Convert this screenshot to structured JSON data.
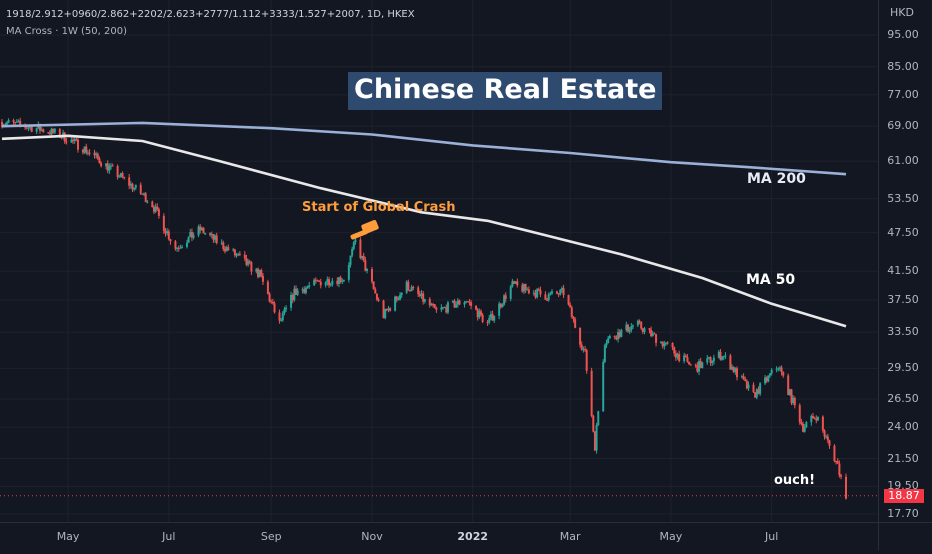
{
  "legend": {
    "symbol_line": "1918/2.912+0960/2.862+2202/2.623+2777/1.112+3333/1.527+2007, 1D, HKEX",
    "indicator_line": "MA Cross · 1W (50, 200)"
  },
  "title": "Chinese Real Estate",
  "annotations": {
    "crash": "Start of Global Crash",
    "ma200": "MA 200",
    "ma50": "MA 50",
    "ouch": "ouch!"
  },
  "currency": "HKD",
  "last_price_label": "18.87",
  "colors": {
    "background": "#131722",
    "up": "#26a69a",
    "down": "#ef5350",
    "ma200": "#9bb0d6",
    "ma50": "#e8e8e8",
    "title_bg": "#2f4a6f",
    "annotation": "#ff9d3b",
    "last_price": "#f23645"
  },
  "icons": [
    "gavel-icon"
  ],
  "chart_data": {
    "type": "candlestick",
    "scale": "log",
    "ylim": [
      17.0,
      100.0
    ],
    "y_ticks": [
      "95.00",
      "85.00",
      "77.00",
      "69.00",
      "61.00",
      "53.50",
      "47.50",
      "41.50",
      "37.50",
      "33.50",
      "29.50",
      "26.50",
      "24.00",
      "21.50",
      "19.50",
      "17.70"
    ],
    "x_ticks": [
      {
        "label": "May",
        "bold": false
      },
      {
        "label": "Jul",
        "bold": false
      },
      {
        "label": "Sep",
        "bold": false
      },
      {
        "label": "Nov",
        "bold": false
      },
      {
        "label": "2022",
        "bold": true
      },
      {
        "label": "Mar",
        "bold": false
      },
      {
        "label": "May",
        "bold": false
      },
      {
        "label": "Jul",
        "bold": false
      }
    ],
    "price_path": [
      [
        "2021-03-22",
        70.0
      ],
      [
        "2021-04-12",
        68.5
      ],
      [
        "2021-04-26",
        67.0
      ],
      [
        "2021-05-10",
        64.0
      ],
      [
        "2021-06-01",
        58.0
      ],
      [
        "2021-06-20",
        53.0
      ],
      [
        "2021-07-05",
        45.0
      ],
      [
        "2021-07-20",
        48.0
      ],
      [
        "2021-08-10",
        44.0
      ],
      [
        "2021-08-25",
        41.0
      ],
      [
        "2021-09-06",
        34.5
      ],
      [
        "2021-09-15",
        38.5
      ],
      [
        "2021-10-01",
        40.0
      ],
      [
        "2021-10-15",
        40.5
      ],
      [
        "2021-10-22",
        46.0
      ],
      [
        "2021-11-08",
        35.5
      ],
      [
        "2021-11-22",
        39.5
      ],
      [
        "2021-12-10",
        36.0
      ],
      [
        "2021-12-28",
        37.5
      ],
      [
        "2022-01-10",
        34.5
      ],
      [
        "2022-01-25",
        39.5
      ],
      [
        "2022-02-15",
        38.0
      ],
      [
        "2022-02-25",
        38.5
      ],
      [
        "2022-03-10",
        31.0
      ],
      [
        "2022-03-16",
        22.5
      ],
      [
        "2022-03-22",
        32.5
      ],
      [
        "2022-04-10",
        34.5
      ],
      [
        "2022-04-28",
        32.0
      ],
      [
        "2022-05-15",
        29.5
      ],
      [
        "2022-06-01",
        31.0
      ],
      [
        "2022-06-20",
        26.8
      ],
      [
        "2022-07-05",
        29.8
      ],
      [
        "2022-07-20",
        24.0
      ],
      [
        "2022-07-28",
        25.0
      ],
      [
        "2022-08-10",
        21.0
      ],
      [
        "2022-08-15",
        18.87
      ]
    ],
    "series": [
      {
        "name": "MA 200",
        "values": [
          [
            "2021-03-22",
            69.0
          ],
          [
            "2021-06-15",
            69.8
          ],
          [
            "2021-09-01",
            68.5
          ],
          [
            "2021-11-01",
            67.0
          ],
          [
            "2022-01-01",
            64.5
          ],
          [
            "2022-03-01",
            62.8
          ],
          [
            "2022-05-01",
            60.8
          ],
          [
            "2022-06-15",
            59.8
          ],
          [
            "2022-08-15",
            58.3
          ]
        ]
      },
      {
        "name": "MA 50",
        "values": [
          [
            "2021-03-22",
            66.0
          ],
          [
            "2021-05-01",
            66.7
          ],
          [
            "2021-06-15",
            65.5
          ],
          [
            "2021-08-01",
            61.0
          ],
          [
            "2021-10-01",
            55.5
          ],
          [
            "2021-12-01",
            51.0
          ],
          [
            "2022-01-10",
            49.5
          ],
          [
            "2022-02-15",
            47.0
          ],
          [
            "2022-04-01",
            44.0
          ],
          [
            "2022-05-20",
            40.5
          ],
          [
            "2022-07-01",
            37.0
          ],
          [
            "2022-08-15",
            34.2
          ]
        ]
      }
    ],
    "last_price": 18.87
  }
}
